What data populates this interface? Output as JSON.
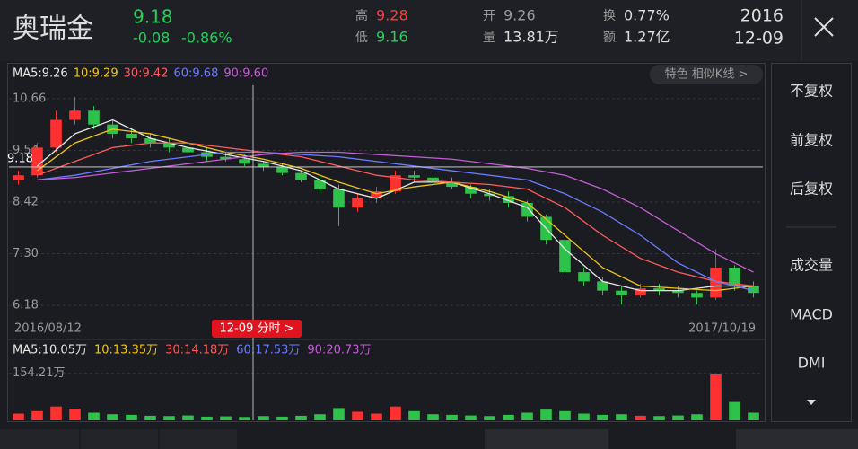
{
  "header": {
    "name": "奥瑞金",
    "price": 9.18,
    "change": -0.08,
    "change_pct": "-0.86%",
    "high_label": "高",
    "high": 9.28,
    "low_label": "低",
    "low": 9.16,
    "open_label": "开",
    "open": 9.26,
    "volume_label": "量",
    "volume": "13.81万",
    "turnover_label": "换",
    "turnover": "0.77%",
    "amount_label": "额",
    "amount": "1.27亿",
    "year": "2016",
    "date": "12-09"
  },
  "side_menu": [
    "不复权",
    "前复权",
    "后复权",
    "成交量",
    "MACD",
    "DMI"
  ],
  "chart_data": [
    {
      "type": "candlestick",
      "badge": "特色 相似K线 >",
      "x_labels": [
        "2016/08/12",
        "2017/10/19"
      ],
      "crosshair": {
        "price": 9.18,
        "time_label": "12-09 分时 >"
      },
      "ylim": [
        5.89,
        10.95
      ],
      "yticks": [
        10.66,
        9.54,
        8.42,
        {
          "value": 7.3,
          "label": "7.30"
        },
        6.18
      ],
      "up_color": "#ff3030",
      "down_color": "#2ec24a",
      "open": [
        8.9,
        9.0,
        9.6,
        10.2,
        10.4,
        10.1,
        9.9,
        9.8,
        9.7,
        9.6,
        9.5,
        9.4,
        9.35,
        9.25,
        9.18,
        9.05,
        8.9,
        8.7,
        8.3,
        8.5,
        8.65,
        9.0,
        8.95,
        8.85,
        8.75,
        8.6,
        8.55,
        8.4,
        8.1,
        7.6,
        6.9,
        6.7,
        6.5,
        6.4,
        6.55,
        6.5,
        6.45,
        6.35,
        7.0,
        6.6
      ],
      "high": [
        9.1,
        9.7,
        10.4,
        10.7,
        10.5,
        10.2,
        10.0,
        9.9,
        9.8,
        9.7,
        9.6,
        9.5,
        9.45,
        9.3,
        9.25,
        9.1,
        9.0,
        8.8,
        8.6,
        8.75,
        9.1,
        9.1,
        9.0,
        8.95,
        8.8,
        8.7,
        8.65,
        8.45,
        8.15,
        7.7,
        7.0,
        6.8,
        6.6,
        6.65,
        6.65,
        6.6,
        6.5,
        7.4,
        7.05,
        6.7
      ],
      "low": [
        8.8,
        8.95,
        9.5,
        10.1,
        10.0,
        9.8,
        9.7,
        9.6,
        9.5,
        9.4,
        9.3,
        9.3,
        9.2,
        9.1,
        9.0,
        8.85,
        8.6,
        7.9,
        8.2,
        8.4,
        8.6,
        8.85,
        8.8,
        8.7,
        8.5,
        8.45,
        8.3,
        8.0,
        7.5,
        6.8,
        6.6,
        6.4,
        6.2,
        6.35,
        6.4,
        6.35,
        6.2,
        6.3,
        6.5,
        6.35
      ],
      "close": [
        9.0,
        9.6,
        10.2,
        10.4,
        10.1,
        9.9,
        9.8,
        9.7,
        9.6,
        9.5,
        9.4,
        9.35,
        9.25,
        9.18,
        9.05,
        8.9,
        8.7,
        8.3,
        8.5,
        8.65,
        9.0,
        8.95,
        8.85,
        8.75,
        8.6,
        8.55,
        8.4,
        8.1,
        7.6,
        6.9,
        6.7,
        6.5,
        6.4,
        6.55,
        6.5,
        6.45,
        6.35,
        7.0,
        6.6,
        6.45
      ],
      "series": [
        {
          "name": "MA5:9.26",
          "color": "#e6e6e6",
          "values": [
            9.2,
            9.9,
            10.2,
            9.8,
            9.6,
            9.45,
            9.3,
            9.1,
            8.7,
            8.5,
            8.85,
            8.85,
            8.6,
            8.3,
            7.4,
            6.7,
            6.5,
            6.5,
            6.6,
            6.6
          ]
        },
        {
          "name": "10:9.29",
          "color": "#f0c419",
          "values": [
            9.1,
            9.7,
            10.0,
            9.9,
            9.7,
            9.5,
            9.35,
            9.15,
            8.85,
            8.6,
            8.75,
            8.85,
            8.65,
            8.4,
            7.7,
            7.0,
            6.6,
            6.55,
            6.5,
            6.6
          ]
        },
        {
          "name": "30:9.42",
          "color": "#ff5a5a",
          "values": [
            9.0,
            9.3,
            9.6,
            9.7,
            9.7,
            9.6,
            9.5,
            9.4,
            9.2,
            9.0,
            8.9,
            8.85,
            8.8,
            8.7,
            8.3,
            7.7,
            7.2,
            6.9,
            6.7,
            6.6
          ]
        },
        {
          "name": "60:9.68",
          "color": "#6b7bff",
          "values": [
            8.9,
            9.0,
            9.15,
            9.3,
            9.4,
            9.5,
            9.5,
            9.45,
            9.4,
            9.3,
            9.2,
            9.1,
            9.0,
            8.9,
            8.6,
            8.2,
            7.7,
            7.1,
            6.7,
            6.5
          ]
        },
        {
          "name": "90:9.60",
          "color": "#c45cd6",
          "values": [
            8.9,
            8.95,
            9.05,
            9.15,
            9.25,
            9.35,
            9.45,
            9.5,
            9.5,
            9.45,
            9.4,
            9.35,
            9.25,
            9.15,
            9.0,
            8.7,
            8.3,
            7.8,
            7.3,
            6.9
          ]
        }
      ]
    },
    {
      "type": "bar",
      "legend": [
        "MA5:10.05万",
        "10:13.35万",
        "30:14.18万",
        "60:17.53万",
        "90:20.73万"
      ],
      "legend_colors": [
        "#e6e6e6",
        "#f0c419",
        "#ff5a5a",
        "#6b7bff",
        "#c45cd6"
      ],
      "ylim": [
        0,
        200
      ],
      "yticks": [
        {
          "value": 154.21,
          "label": "154.21万"
        }
      ],
      "values": [
        22,
        30,
        45,
        38,
        25,
        20,
        18,
        15,
        14,
        16,
        12,
        13,
        11,
        14,
        12,
        15,
        20,
        40,
        28,
        22,
        45,
        30,
        20,
        18,
        16,
        14,
        18,
        25,
        35,
        30,
        22,
        18,
        20,
        15,
        14,
        16,
        20,
        150,
        60,
        25
      ]
    }
  ]
}
